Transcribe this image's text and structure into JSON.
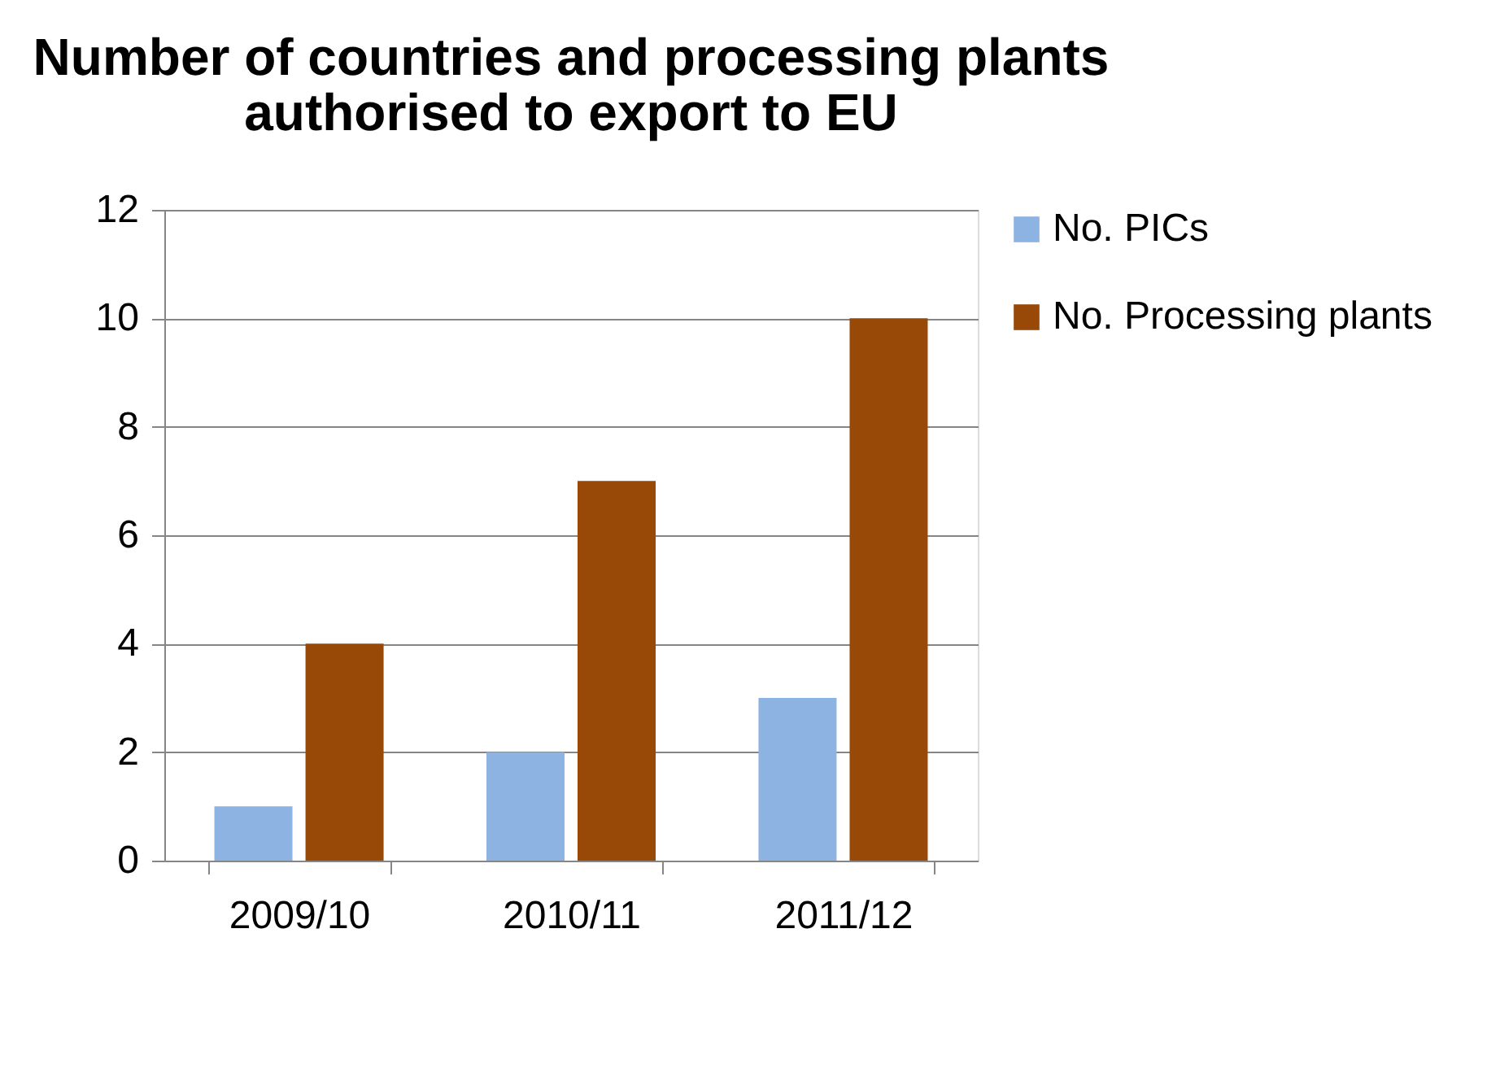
{
  "chart_data": {
    "type": "bar",
    "title": "Number of countries and processing plants authorised to export to EU",
    "categories": [
      "2009/10",
      "2010/11",
      "2011/12"
    ],
    "series": [
      {
        "name": "No. PICs",
        "color": "#8db3e2",
        "values": [
          1,
          2,
          3
        ]
      },
      {
        "name": "No. Processing plants",
        "color": "#984807",
        "values": [
          4,
          7,
          10
        ]
      }
    ],
    "ylim": [
      0,
      12
    ],
    "yticks": [
      0,
      2,
      4,
      6,
      8,
      10,
      12
    ],
    "grid": "y",
    "legend": "right"
  }
}
